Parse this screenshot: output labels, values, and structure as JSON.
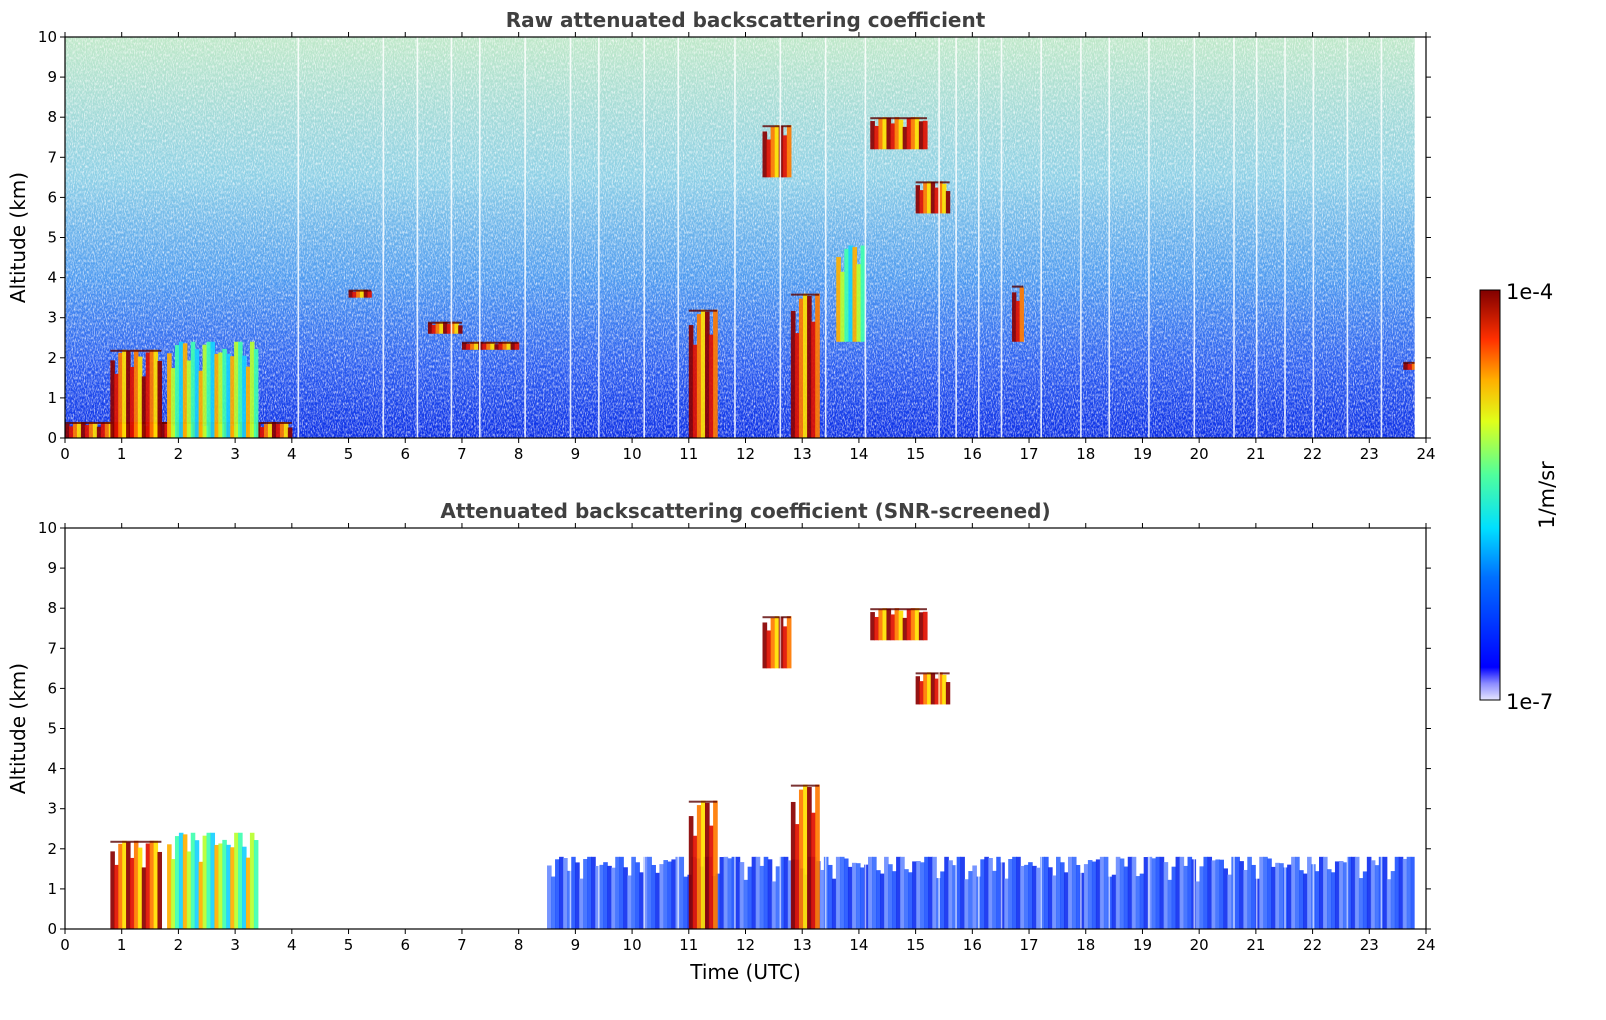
{
  "chart_data": [
    {
      "type": "heatmap",
      "title": "Raw attenuated backscattering coefficient",
      "xlabel": "",
      "ylabel": "Altitude (km)",
      "xlim": [
        0,
        24
      ],
      "ylim": [
        0,
        10
      ],
      "xticks": [
        "0",
        "1",
        "2",
        "3",
        "4",
        "5",
        "6",
        "7",
        "8",
        "9",
        "10",
        "11",
        "12",
        "13",
        "14",
        "15",
        "16",
        "17",
        "18",
        "19",
        "20",
        "21",
        "22",
        "23",
        "24"
      ],
      "yticks": [
        "0",
        "1",
        "2",
        "3",
        "4",
        "5",
        "6",
        "7",
        "8",
        "9",
        "10"
      ],
      "features": [
        {
          "kind": "boundary_layer_band",
          "x": [
            0,
            4
          ],
          "y": [
            0,
            0.4
          ],
          "level": "high"
        },
        {
          "kind": "low_cloud",
          "x": [
            0.8,
            1.7
          ],
          "y": [
            0,
            2.2
          ],
          "level": "high"
        },
        {
          "kind": "low_cloud",
          "x": [
            1.8,
            3.4
          ],
          "y": [
            0,
            2.4
          ],
          "level": "mid"
        },
        {
          "kind": "cloud_layer",
          "x": [
            6.4,
            7.0
          ],
          "y": [
            2.6,
            2.9
          ],
          "level": "high"
        },
        {
          "kind": "cloud_layer",
          "x": [
            7.0,
            8.0
          ],
          "y": [
            2.2,
            2.4
          ],
          "level": "high"
        },
        {
          "kind": "cloud_layer",
          "x": [
            5.0,
            5.4
          ],
          "y": [
            3.5,
            3.7
          ],
          "level": "high"
        },
        {
          "kind": "precipitation",
          "x": [
            11.0,
            11.5
          ],
          "y": [
            0,
            3.2
          ],
          "level": "high"
        },
        {
          "kind": "precipitation",
          "x": [
            12.8,
            13.3
          ],
          "y": [
            0,
            3.6
          ],
          "level": "high"
        },
        {
          "kind": "cirrus",
          "x": [
            12.3,
            12.8
          ],
          "y": [
            6.5,
            7.8
          ],
          "level": "high"
        },
        {
          "kind": "cirrus",
          "x": [
            14.2,
            15.2
          ],
          "y": [
            7.2,
            8.0
          ],
          "level": "high"
        },
        {
          "kind": "cirrus",
          "x": [
            15.0,
            15.6
          ],
          "y": [
            5.6,
            6.4
          ],
          "level": "high"
        },
        {
          "kind": "mid_cloud",
          "x": [
            13.6,
            14.1
          ],
          "y": [
            2.4,
            4.8
          ],
          "level": "mid"
        },
        {
          "kind": "mid_cloud",
          "x": [
            16.7,
            16.9
          ],
          "y": [
            2.4,
            3.8
          ],
          "level": "high"
        },
        {
          "kind": "cloud_layer",
          "x": [
            23.6,
            23.9
          ],
          "y": [
            1.7,
            1.9
          ],
          "level": "high"
        }
      ]
    },
    {
      "type": "heatmap",
      "title": "Attenuated backscattering coefficient (SNR-screened)",
      "xlabel": "Time (UTC)",
      "ylabel": "Altitude (km)",
      "xlim": [
        0,
        24
      ],
      "ylim": [
        0,
        10
      ],
      "xticks": [
        "0",
        "1",
        "2",
        "3",
        "4",
        "5",
        "6",
        "7",
        "8",
        "9",
        "10",
        "11",
        "12",
        "13",
        "14",
        "15",
        "16",
        "17",
        "18",
        "19",
        "20",
        "21",
        "22",
        "23",
        "24"
      ],
      "yticks": [
        "0",
        "1",
        "2",
        "3",
        "4",
        "5",
        "6",
        "7",
        "8",
        "9",
        "10"
      ],
      "features": [
        {
          "kind": "boundary_layer",
          "x": [
            8.5,
            16
          ],
          "y": [
            0,
            1.8
          ],
          "level": "low"
        },
        {
          "kind": "boundary_layer",
          "x": [
            16,
            23.8
          ],
          "y": [
            0,
            1.8
          ],
          "level": "low"
        },
        {
          "kind": "low_cloud",
          "x": [
            0.8,
            1.7
          ],
          "y": [
            0,
            2.2
          ],
          "level": "high"
        },
        {
          "kind": "low_cloud",
          "x": [
            1.8,
            3.4
          ],
          "y": [
            0,
            2.4
          ],
          "level": "mid"
        },
        {
          "kind": "precipitation",
          "x": [
            11.0,
            11.5
          ],
          "y": [
            0,
            3.2
          ],
          "level": "high"
        },
        {
          "kind": "precipitation",
          "x": [
            12.8,
            13.3
          ],
          "y": [
            0,
            3.6
          ],
          "level": "high"
        },
        {
          "kind": "cirrus",
          "x": [
            12.3,
            12.8
          ],
          "y": [
            6.5,
            7.8
          ],
          "level": "high"
        },
        {
          "kind": "cirrus",
          "x": [
            14.2,
            15.2
          ],
          "y": [
            7.2,
            8.0
          ],
          "level": "high"
        },
        {
          "kind": "cirrus",
          "x": [
            15.0,
            15.6
          ],
          "y": [
            5.6,
            6.4
          ],
          "level": "high"
        }
      ]
    }
  ],
  "colorbar": {
    "label": "1/m/sr",
    "max_label": "1e-4",
    "min_label": "1e-7",
    "colormap": "jet"
  }
}
